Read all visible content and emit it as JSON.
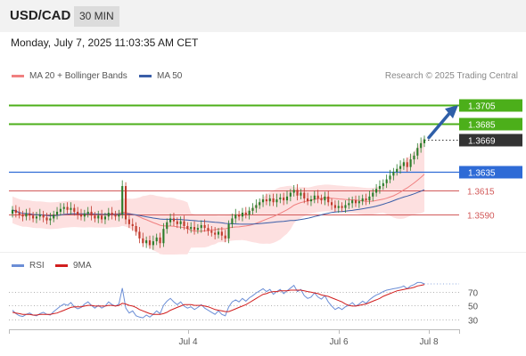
{
  "header": {
    "symbol": "USD/CAD",
    "timeframe": "30 MIN",
    "datetime": "Monday, July 7, 2025 11:03:35 AM CET"
  },
  "legend": {
    "ma20_label": "MA 20 + Bollinger Bands",
    "ma50_label": "MA 50",
    "credit": "Research © 2025 Trading Central",
    "rsi_label": "RSI",
    "rsi_ma_label": "9MA"
  },
  "colors": {
    "ma20": "#f08080",
    "ma50": "#3a5ea8",
    "band_fill": "#fde0e0",
    "resistance": "#4caf1a",
    "current": "#333333",
    "pivot": "#2f6bd6",
    "support": "#d25a5a",
    "bull": "#2a7d2a",
    "bear": "#c0392b",
    "rsi": "#6b8ed6",
    "rsi_ma": "#d11e1e",
    "arrow": "#2f5fa8"
  },
  "chart_data": [
    {
      "type": "candlestick",
      "title": "USD/CAD",
      "ylim": [
        1.3535,
        1.3735
      ],
      "x_tick_labels": [
        "Jul 4",
        "Jul 6",
        "Jul 8"
      ],
      "levels": [
        {
          "value": 1.3705,
          "label": "1.3705",
          "kind": "resistance"
        },
        {
          "value": 1.3685,
          "label": "1.3685",
          "kind": "resistance"
        },
        {
          "value": 1.3669,
          "label": "1.3669",
          "kind": "current"
        },
        {
          "value": 1.3635,
          "label": "1.3635",
          "kind": "pivot"
        },
        {
          "value": 1.3615,
          "label": "1.3615",
          "kind": "support"
        },
        {
          "value": 1.359,
          "label": "1.3590",
          "kind": "support"
        }
      ],
      "close": [
        1.3595,
        1.3592,
        1.359,
        1.3588,
        1.3591,
        1.3589,
        1.3586,
        1.3588,
        1.359,
        1.3587,
        1.3584,
        1.3586,
        1.359,
        1.3593,
        1.3596,
        1.3598,
        1.3595,
        1.3597,
        1.3593,
        1.359,
        1.3588,
        1.3591,
        1.3593,
        1.3589,
        1.3586,
        1.3589,
        1.3585,
        1.3588,
        1.3592,
        1.359,
        1.3588,
        1.359,
        1.362,
        1.3585,
        1.358,
        1.3578,
        1.3572,
        1.3565,
        1.356,
        1.3563,
        1.3558,
        1.3562,
        1.3566,
        1.356,
        1.3575,
        1.3582,
        1.3586,
        1.3583,
        1.358,
        1.3583,
        1.3578,
        1.3575,
        1.3577,
        1.3574,
        1.3576,
        1.3579,
        1.3576,
        1.3573,
        1.3571,
        1.3569,
        1.3572,
        1.3568,
        1.3565,
        1.358,
        1.3586,
        1.359,
        1.3588,
        1.3592,
        1.359,
        1.3594,
        1.3597,
        1.36,
        1.3603,
        1.3606,
        1.3604,
        1.3607,
        1.3603,
        1.3606,
        1.3608,
        1.3605,
        1.3609,
        1.3613,
        1.3616,
        1.361,
        1.3613,
        1.3607,
        1.3604,
        1.3606,
        1.361,
        1.3607,
        1.3605,
        1.3609,
        1.3603,
        1.36,
        1.3597,
        1.3599,
        1.3597,
        1.36,
        1.3602,
        1.3605,
        1.3602,
        1.3604,
        1.3607,
        1.3605,
        1.3609,
        1.3613,
        1.3617,
        1.362,
        1.3623,
        1.3627,
        1.3631,
        1.3635,
        1.3638,
        1.3641,
        1.3645,
        1.364,
        1.3648,
        1.3652,
        1.366,
        1.3665,
        1.3669
      ],
      "rsi": {
        "levels": [
          70,
          50,
          30
        ],
        "ylim": [
          18,
          90
        ],
        "rsi": [
          43,
          38,
          35,
          34,
          37,
          39,
          36,
          35,
          38,
          40,
          37,
          36,
          41,
          45,
          49,
          52,
          50,
          54,
          48,
          45,
          47,
          52,
          55,
          50,
          46,
          50,
          46,
          49,
          55,
          51,
          49,
          52,
          75,
          46,
          39,
          42,
          35,
          33,
          32,
          36,
          33,
          37,
          42,
          38,
          50,
          56,
          60,
          55,
          51,
          55,
          49,
          46,
          48,
          44,
          47,
          51,
          46,
          43,
          40,
          37,
          42,
          37,
          35,
          48,
          55,
          58,
          55,
          60,
          56,
          61,
          64,
          68,
          71,
          74,
          70,
          73,
          66,
          70,
          73,
          67,
          71,
          75,
          79,
          70,
          73,
          64,
          60,
          62,
          68,
          62,
          59,
          64,
          55,
          49,
          44,
          47,
          44,
          48,
          50,
          54,
          49,
          52,
          56,
          53,
          58,
          62,
          65,
          67,
          70,
          72,
          73,
          74,
          75,
          76,
          78,
          74,
          78,
          80,
          83,
          83,
          81
        ],
        "ma": [
          40,
          39,
          38,
          37,
          37,
          37,
          36,
          36,
          37,
          37,
          37,
          37,
          38,
          39,
          41,
          43,
          45,
          47,
          48,
          48,
          48,
          49,
          50,
          50,
          49,
          49,
          49,
          49,
          50,
          50,
          49,
          50,
          53,
          52,
          50,
          49,
          47,
          44,
          42,
          40,
          38,
          37,
          37,
          37,
          38,
          40,
          43,
          45,
          47,
          49,
          51,
          51,
          51,
          50,
          50,
          50,
          49,
          48,
          46,
          44,
          43,
          42,
          41,
          41,
          43,
          45,
          47,
          49,
          51,
          54,
          57,
          60,
          63,
          66,
          67,
          69,
          70,
          70,
          71,
          71,
          71,
          72,
          72,
          72,
          72,
          71,
          70,
          69,
          68,
          67,
          65,
          64,
          63,
          61,
          59,
          57,
          55,
          52,
          50,
          49,
          49,
          50,
          51,
          52,
          54,
          56,
          58,
          60,
          63,
          65,
          67,
          69,
          71,
          72,
          73,
          74,
          75,
          76,
          78,
          79,
          80
        ]
      }
    }
  ]
}
